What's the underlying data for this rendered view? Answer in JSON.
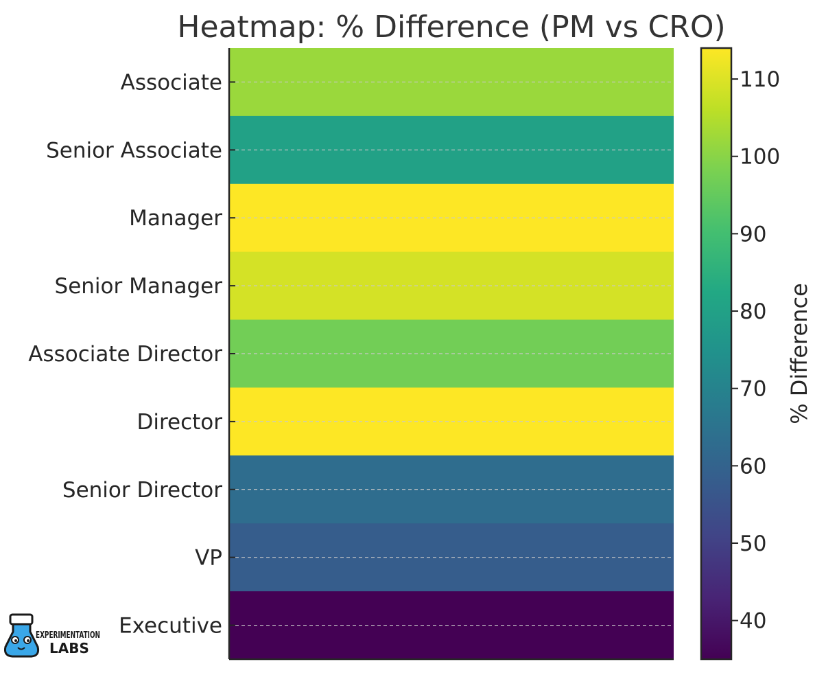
{
  "chart_data": {
    "type": "heatmap",
    "title": "Heatmap: % Difference (PM vs CRO)",
    "categories": [
      "Associate",
      "Senior Associate",
      "Manager",
      "Senior Manager",
      "Associate Director",
      "Director",
      "Senior Director",
      "VP",
      "Executive"
    ],
    "values": [
      102,
      80,
      114,
      109,
      97,
      114,
      63,
      58,
      35
    ],
    "colorbar": {
      "label": "% Difference",
      "range": [
        35,
        114
      ],
      "ticks": [
        "40",
        "50",
        "60",
        "70",
        "80",
        "90",
        "100",
        "110"
      ],
      "colormap": "viridis"
    },
    "grid": "horizontal dashed",
    "xlabel": "",
    "ylabel": ""
  },
  "logo": {
    "line1": "EXPERIMENTATION",
    "line2": "LABS"
  },
  "colors": {
    "text": "#262626",
    "grid": "#c8c8c8",
    "logo_blue": "#3aa7e8"
  }
}
